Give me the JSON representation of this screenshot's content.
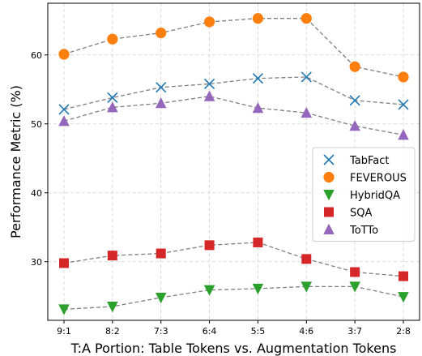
{
  "chart_data": {
    "type": "scatter",
    "title": "",
    "xlabel": "T:A Portion: Table Tokens vs. Augmentation Tokens",
    "ylabel": "Performance Metric (%)",
    "categories": [
      "9:1",
      "8:2",
      "7:3",
      "6:4",
      "5:5",
      "4:6",
      "3:7",
      "2:8"
    ],
    "ylim": [
      21.5,
      67.5
    ],
    "yticks": [
      30,
      40,
      50,
      60
    ],
    "grid": true,
    "legend_position": "center-right",
    "connector_style": "dashed gray line",
    "series": [
      {
        "name": "TabFact",
        "marker": "x",
        "color": "#1f77b4",
        "values": [
          52.1,
          53.8,
          55.3,
          55.8,
          56.6,
          56.8,
          53.4,
          52.8
        ]
      },
      {
        "name": "FEVEROUS",
        "marker": "circle",
        "color": "#ff7f0e",
        "values": [
          60.1,
          62.3,
          63.2,
          64.8,
          65.3,
          65.3,
          58.3,
          56.8
        ]
      },
      {
        "name": "HybridQA",
        "marker": "triangle-down",
        "color": "#2ca02c",
        "values": [
          23.1,
          23.5,
          24.8,
          25.9,
          26.1,
          26.4,
          26.4,
          24.9
        ]
      },
      {
        "name": "SQA",
        "marker": "square",
        "color": "#d62728",
        "values": [
          29.8,
          30.9,
          31.2,
          32.4,
          32.8,
          30.4,
          28.5,
          27.9
        ]
      },
      {
        "name": "ToTTo",
        "marker": "triangle-up",
        "color": "#9467bd",
        "values": [
          50.4,
          52.4,
          53.0,
          54.0,
          52.3,
          51.6,
          49.7,
          48.4
        ]
      }
    ]
  }
}
